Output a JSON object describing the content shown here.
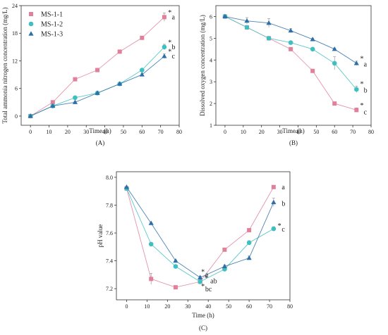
{
  "legend": {
    "placement": "top-left",
    "entries": [
      {
        "label": "MS-1-1",
        "color": "#e0809b",
        "marker": "square"
      },
      {
        "label": "MS-1-2",
        "color": "#3fbfbf",
        "marker": "circle"
      },
      {
        "label": "MS-1-3",
        "color": "#2f6fa8",
        "marker": "triangle"
      }
    ]
  },
  "chart_data": [
    {
      "type": "line",
      "panel_label": "(A)",
      "xlabel": "Time (h)",
      "ylabel": "Total ammonia nitrogen concentration (mg/L)",
      "xlim": [
        -5,
        80
      ],
      "ylim": [
        -2,
        24
      ],
      "xticks": [
        0,
        10,
        20,
        30,
        40,
        50,
        60,
        70,
        80
      ],
      "yticks": [
        0,
        6,
        12,
        18,
        24
      ],
      "grid": false,
      "x": [
        0,
        12,
        24,
        36,
        48,
        60,
        72
      ],
      "series": [
        {
          "name": "MS-1-1",
          "values": [
            0,
            3,
            8,
            10,
            14,
            17,
            21.5
          ],
          "error": [
            0,
            0.2,
            0.3,
            0.3,
            0.3,
            0.3,
            0.9
          ],
          "color": "#e0809b",
          "marker": "square"
        },
        {
          "name": "MS-1-2",
          "values": [
            0,
            2.2,
            4,
            5,
            7,
            10,
            15
          ],
          "error": [
            0,
            0.2,
            0.2,
            0.2,
            0.2,
            0.3,
            0.6
          ],
          "color": "#3fbfbf",
          "marker": "circle"
        },
        {
          "name": "MS-1-3",
          "values": [
            0,
            2.2,
            3,
            5,
            7,
            9,
            13
          ],
          "error": [
            0,
            0.2,
            0.2,
            0.2,
            0.2,
            0.3,
            0.5
          ],
          "color": "#2f6fa8",
          "marker": "triangle"
        }
      ],
      "annotations": [
        {
          "text": "*",
          "x": 74,
          "y": 22.5
        },
        {
          "text": "a",
          "x": 76,
          "y": 21.5
        },
        {
          "text": "*",
          "x": 74,
          "y": 16
        },
        {
          "text": "b",
          "x": 76,
          "y": 15
        },
        {
          "text": "*",
          "x": 74,
          "y": 14
        },
        {
          "text": "c",
          "x": 76,
          "y": 13
        }
      ]
    },
    {
      "type": "line",
      "panel_label": "(B)",
      "xlabel": "Time (h)",
      "ylabel": "Dissolved oxygen concentration (mg/L)",
      "xlim": [
        -5,
        80
      ],
      "ylim": [
        1,
        6.5
      ],
      "xticks": [
        0,
        10,
        20,
        30,
        40,
        50,
        60,
        70,
        80
      ],
      "yticks": [
        1,
        2,
        3,
        4,
        5,
        6
      ],
      "grid": false,
      "x": [
        0,
        12,
        24,
        36,
        48,
        60,
        72
      ],
      "series": [
        {
          "name": "MS-1-1",
          "values": [
            6,
            5.5,
            5,
            4.5,
            3.5,
            2,
            1.7
          ],
          "error": [
            0,
            0.05,
            0.05,
            0.05,
            0.05,
            0.05,
            0.1
          ],
          "color": "#e0809b",
          "marker": "square"
        },
        {
          "name": "MS-1-2",
          "values": [
            6,
            5.5,
            5,
            4.8,
            4.5,
            3.85,
            2.65
          ],
          "error": [
            0,
            0.05,
            0.05,
            0.05,
            0.05,
            0.3,
            0.15
          ],
          "color": "#3fbfbf",
          "marker": "circle"
        },
        {
          "name": "MS-1-3",
          "values": [
            6,
            5.8,
            5.7,
            5.35,
            4.95,
            4.5,
            3.85
          ],
          "error": [
            0,
            0.15,
            0.2,
            0.1,
            0.05,
            0.05,
            0.1
          ],
          "color": "#2f6fa8",
          "marker": "triangle"
        }
      ],
      "annotations": [
        {
          "text": "*",
          "x": 74,
          "y": 4.05
        },
        {
          "text": "a",
          "x": 76,
          "y": 3.8
        },
        {
          "text": "*",
          "x": 74,
          "y": 2.9
        },
        {
          "text": "b",
          "x": 76,
          "y": 2.6
        },
        {
          "text": "*",
          "x": 74,
          "y": 1.9
        },
        {
          "text": "c",
          "x": 76,
          "y": 1.6
        }
      ]
    },
    {
      "type": "line",
      "panel_label": "(C)",
      "xlabel": "Time (h)",
      "ylabel": "pH value",
      "xlim": [
        -5,
        80
      ],
      "ylim": [
        7.12,
        8.04
      ],
      "xticks": [
        0,
        10,
        20,
        30,
        40,
        50,
        60,
        70,
        80
      ],
      "yticks": [
        7.2,
        7.4,
        7.6,
        7.8,
        8.0
      ],
      "ytick_labels": [
        "7.2",
        "7.4",
        "7.6",
        "7.8",
        "8.0"
      ],
      "grid": false,
      "x": [
        0,
        12,
        24,
        36,
        48,
        60,
        72
      ],
      "series": [
        {
          "name": "MS-1-1",
          "values": [
            7.92,
            7.27,
            7.21,
            7.25,
            7.48,
            7.62,
            7.93
          ],
          "error": [
            0,
            0.04,
            0.005,
            0.01,
            0.005,
            0.005,
            0.005
          ],
          "color": "#e0809b",
          "marker": "square"
        },
        {
          "name": "MS-1-2",
          "values": [
            7.92,
            7.52,
            7.36,
            7.25,
            7.34,
            7.53,
            7.63
          ],
          "error": [
            0,
            0.005,
            0.005,
            0.01,
            0.01,
            0.015,
            0.015
          ],
          "color": "#3fbfbf",
          "marker": "circle"
        },
        {
          "name": "MS-1-3",
          "values": [
            7.93,
            7.67,
            7.4,
            7.28,
            7.36,
            7.42,
            7.82
          ],
          "error": [
            0,
            0.005,
            0.005,
            0.01,
            0.01,
            0.015,
            0.03
          ],
          "color": "#2f6fa8",
          "marker": "triangle"
        }
      ],
      "annotations": [
        {
          "text": "*",
          "x": 36.5,
          "y": 7.32
        },
        {
          "text": "a",
          "x": 38.5,
          "y": 7.3
        },
        {
          "text": "*",
          "x": 38.2,
          "y": 7.275
        },
        {
          "text": "ab",
          "x": 41,
          "y": 7.255
        },
        {
          "text": "*",
          "x": 36.5,
          "y": 7.215
        },
        {
          "text": "bc",
          "x": 38.5,
          "y": 7.195
        },
        {
          "text": "a",
          "x": 76,
          "y": 7.93
        },
        {
          "text": "b",
          "x": 76,
          "y": 7.81
        },
        {
          "text": "*",
          "x": 74,
          "y": 7.65
        },
        {
          "text": "c",
          "x": 76,
          "y": 7.625
        }
      ]
    }
  ]
}
